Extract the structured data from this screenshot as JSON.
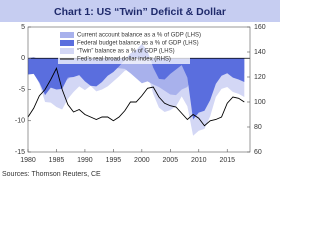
{
  "chart_data": {
    "type": "area",
    "title": "Chart 1: US “Twin” Deficit & Dollar",
    "source": "Sources: Thomson Reuters, CE",
    "x": [
      1980,
      1981,
      1982,
      1983,
      1984,
      1985,
      1986,
      1987,
      1988,
      1989,
      1990,
      1991,
      1992,
      1993,
      1994,
      1995,
      1996,
      1997,
      1998,
      1999,
      2000,
      2001,
      2002,
      2003,
      2004,
      2005,
      2006,
      2007,
      2008,
      2009,
      2010,
      2011,
      2012,
      2013,
      2014,
      2015,
      2016,
      2017,
      2018
    ],
    "series": [
      {
        "name": "“Twin” balance as a % of GDP (LHS)",
        "color": "#d3d7f5",
        "values": [
          -2.6,
          -2.3,
          -4.1,
          -7.0,
          -7.1,
          -7.8,
          -8.2,
          -6.5,
          -5.4,
          -4.5,
          -5.1,
          -4.4,
          -5.3,
          -5.0,
          -4.5,
          -3.7,
          -2.9,
          -2.0,
          -1.6,
          -1.9,
          -1.7,
          -2.5,
          -5.7,
          -7.9,
          -8.6,
          -8.3,
          -7.7,
          -6.1,
          -7.7,
          -12.4,
          -11.6,
          -11.3,
          -9.3,
          -6.2,
          -4.9,
          -4.6,
          -5.4,
          -5.7,
          -6.2
        ]
      },
      {
        "name": "Current account balance as a % of GDP (LHS)",
        "color": "#a8b1ec",
        "values": [
          0,
          0.2,
          -0.2,
          -1.1,
          -2.4,
          -2.8,
          -3.3,
          -3.4,
          -2.4,
          -1.8,
          -1.4,
          0,
          -0.8,
          -1.2,
          -1.7,
          -1.5,
          -1.6,
          -1.7,
          -2.4,
          -3.2,
          -4.0,
          -3.7,
          -4.2,
          -4.6,
          -5.2,
          -5.8,
          -5.9,
          -5.0,
          -4.6,
          -2.6,
          -2.9,
          -2.9,
          -2.6,
          -2.1,
          -2.1,
          -2.2,
          -2.3,
          -2.3,
          -2.4
        ]
      },
      {
        "name": "Federal budget balance as a % of GDP (LHS)",
        "color": "#5a6ede",
        "values": [
          -2.6,
          -2.5,
          -3.9,
          -5.9,
          -4.7,
          -5.0,
          -4.9,
          -3.1,
          -3.0,
          -2.7,
          -3.7,
          -4.4,
          -4.5,
          -3.8,
          -2.8,
          -2.2,
          -1.3,
          -0.3,
          0.8,
          1.3,
          2.3,
          1.2,
          -1.5,
          -3.3,
          -3.4,
          -2.5,
          -1.8,
          -1.1,
          -3.1,
          -9.8,
          -8.7,
          -8.4,
          -6.7,
          -4.1,
          -2.8,
          -2.4,
          -3.1,
          -3.4,
          -3.8
        ]
      },
      {
        "name": "Fed’s real broad dollar index (RHS)",
        "color": "#000000",
        "axis": "y2",
        "values": [
          88,
          95,
          105,
          110,
          118,
          127,
          110,
          98,
          92,
          94,
          90,
          88,
          86,
          88,
          88,
          85,
          88,
          93,
          100,
          100,
          105,
          111,
          112,
          104,
          99,
          97,
          96,
          91,
          86,
          90,
          87,
          81,
          85,
          86,
          88,
          99,
          104,
          103,
          100
        ]
      }
    ],
    "legend_order": [
      1,
      2,
      0,
      3
    ],
    "legend": "upper left",
    "xlim": [
      1980,
      2019
    ],
    "xticks": [
      1980,
      1985,
      1990,
      1995,
      2000,
      2005,
      2010,
      2015
    ],
    "ylim": [
      -15,
      5
    ],
    "yticks": [
      -15,
      -10,
      -5,
      0,
      5
    ],
    "y2lim": [
      60,
      160
    ],
    "y2ticks": [
      60,
      80,
      100,
      120,
      140,
      160
    ]
  }
}
